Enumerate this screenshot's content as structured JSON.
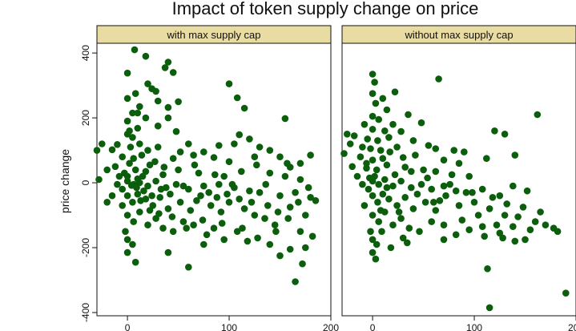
{
  "chart_data": {
    "type": "scatter",
    "title": "Impact of token supply change on price",
    "ylabel": "price change",
    "xlabel": "",
    "xlim": [
      -30,
      200
    ],
    "ylim": [
      -410,
      430
    ],
    "x_ticks": [
      0,
      100,
      200
    ],
    "y_ticks": [
      -400,
      -200,
      0,
      200,
      400
    ],
    "grid": false,
    "colors": {
      "marker": "#0b5e0b",
      "strip": "#e9dca3",
      "axis": "#111111"
    },
    "panels": [
      {
        "name": "with max supply cap",
        "points": [
          [
            7,
            410
          ],
          [
            18,
            390
          ],
          [
            40,
            372
          ],
          [
            37,
            355
          ],
          [
            45,
            340
          ],
          [
            0,
            338
          ],
          [
            20,
            305
          ],
          [
            24,
            290
          ],
          [
            100,
            305
          ],
          [
            8,
            275
          ],
          [
            28,
            282
          ],
          [
            0,
            260
          ],
          [
            30,
            252
          ],
          [
            108,
            262
          ],
          [
            115,
            230
          ],
          [
            50,
            250
          ],
          [
            40,
            232
          ],
          [
            12,
            235
          ],
          [
            5,
            215
          ],
          [
            18,
            200
          ],
          [
            0,
            190
          ],
          [
            40,
            200
          ],
          [
            155,
            198
          ],
          [
            30,
            175
          ],
          [
            10,
            168
          ],
          [
            2,
            160
          ],
          [
            48,
            158
          ],
          [
            110,
            148
          ],
          [
            120,
            135
          ],
          [
            -25,
            120
          ],
          [
            -10,
            118
          ],
          [
            -30,
            100
          ],
          [
            -15,
            102
          ],
          [
            0,
            150
          ],
          [
            5,
            140
          ],
          [
            12,
            120
          ],
          [
            20,
            100
          ],
          [
            30,
            110
          ],
          [
            60,
            120
          ],
          [
            75,
            95
          ],
          [
            90,
            115
          ],
          [
            105,
            120
          ],
          [
            130,
            110
          ],
          [
            140,
            100
          ],
          [
            150,
            80
          ],
          [
            180,
            85
          ],
          [
            170,
            60
          ],
          [
            160,
            48
          ],
          [
            45,
            75
          ],
          [
            65,
            85
          ],
          [
            85,
            78
          ],
          [
            100,
            65
          ],
          [
            125,
            80
          ],
          [
            -5,
            80
          ],
          [
            -12,
            50
          ],
          [
            -20,
            40
          ],
          [
            -3,
            30
          ],
          [
            2,
            60
          ],
          [
            8,
            40
          ],
          [
            15,
            20
          ],
          [
            22,
            55
          ],
          [
            35,
            25
          ],
          [
            50,
            40
          ],
          [
            70,
            30
          ],
          [
            95,
            20
          ],
          [
            112,
            35
          ],
          [
            140,
            30
          ],
          [
            155,
            20
          ],
          [
            170,
            10
          ],
          [
            -28,
            10
          ],
          [
            0,
            5
          ],
          [
            6,
            -5
          ],
          [
            12,
            0
          ],
          [
            20,
            -10
          ],
          [
            28,
            5
          ],
          [
            38,
            -15
          ],
          [
            48,
            -5
          ],
          [
            60,
            -20
          ],
          [
            75,
            -10
          ],
          [
            90,
            -5
          ],
          [
            105,
            -15
          ],
          [
            120,
            -25
          ],
          [
            130,
            -30
          ],
          [
            150,
            -40
          ],
          [
            165,
            -30
          ],
          [
            180,
            -45
          ],
          [
            185,
            -55
          ],
          [
            -10,
            -5
          ],
          [
            -5,
            -20
          ],
          [
            0,
            -40
          ],
          [
            5,
            -60
          ],
          [
            10,
            -35
          ],
          [
            18,
            -50
          ],
          [
            25,
            -70
          ],
          [
            32,
            -45
          ],
          [
            40,
            -80
          ],
          [
            52,
            -60
          ],
          [
            62,
            -85
          ],
          [
            72,
            -40
          ],
          [
            82,
            -70
          ],
          [
            92,
            -90
          ],
          [
            100,
            -60
          ],
          [
            115,
            -80
          ],
          [
            125,
            -100
          ],
          [
            135,
            -110
          ],
          [
            145,
            -130
          ],
          [
            158,
            -110
          ],
          [
            170,
            -150
          ],
          [
            175,
            -100
          ],
          [
            182,
            -165
          ],
          [
            -5,
            -70
          ],
          [
            0,
            -100
          ],
          [
            6,
            -120
          ],
          [
            12,
            -90
          ],
          [
            20,
            -130
          ],
          [
            28,
            -110
          ],
          [
            35,
            -140
          ],
          [
            45,
            -150
          ],
          [
            55,
            -120
          ],
          [
            65,
            -130
          ],
          [
            78,
            -160
          ],
          [
            85,
            -140
          ],
          [
            95,
            -175
          ],
          [
            108,
            -150
          ],
          [
            118,
            -180
          ],
          [
            128,
            -170
          ],
          [
            140,
            -190
          ],
          [
            160,
            -205
          ],
          [
            175,
            -200
          ],
          [
            -2,
            -150
          ],
          [
            0,
            -175
          ],
          [
            5,
            -190
          ],
          [
            0,
            -215
          ],
          [
            8,
            -245
          ],
          [
            60,
            -260
          ],
          [
            75,
            -190
          ],
          [
            40,
            -215
          ],
          [
            150,
            -225
          ],
          [
            172,
            -250
          ],
          [
            165,
            -305
          ],
          [
            10,
            215
          ],
          [
            3,
            110
          ],
          [
            6,
            75
          ],
          [
            14,
            85
          ],
          [
            -8,
            20
          ],
          [
            9,
            -15
          ],
          [
            16,
            -25
          ],
          [
            24,
            -40
          ],
          [
            33,
            -20
          ],
          [
            42,
            -35
          ],
          [
            55,
            -10
          ],
          [
            68,
            -55
          ],
          [
            80,
            -30
          ],
          [
            88,
            -45
          ],
          [
            98,
            -35
          ],
          [
            110,
            -50
          ],
          [
            122,
            -60
          ],
          [
            138,
            -70
          ],
          [
            148,
            -90
          ],
          [
            160,
            -75
          ],
          [
            -15,
            -40
          ],
          [
            -20,
            -60
          ],
          [
            0,
            20
          ],
          [
            4,
            -8
          ],
          [
            10,
            12
          ],
          [
            13,
            -55
          ],
          [
            18,
            35
          ],
          [
            22,
            -85
          ],
          [
            27,
            65
          ],
          [
            31,
            -95
          ],
          [
            36,
            48
          ],
          [
            44,
            -105
          ],
          [
            52,
            95
          ],
          [
            58,
            -140
          ],
          [
            66,
            55
          ],
          [
            74,
            -115
          ],
          [
            86,
            25
          ],
          [
            93,
            -125
          ],
          [
            103,
            -5
          ],
          [
            113,
            -140
          ],
          [
            127,
            55
          ],
          [
            136,
            -5
          ],
          [
            146,
            -150
          ],
          [
            157,
            60
          ],
          [
            168,
            -60
          ],
          [
            178,
            -15
          ]
        ]
      },
      {
        "name": "without max supply cap",
        "points": [
          [
            0,
            335
          ],
          [
            2,
            310
          ],
          [
            65,
            320
          ],
          [
            0,
            275
          ],
          [
            22,
            280
          ],
          [
            10,
            260
          ],
          [
            3,
            245
          ],
          [
            14,
            225
          ],
          [
            35,
            210
          ],
          [
            0,
            205
          ],
          [
            6,
            195
          ],
          [
            20,
            180
          ],
          [
            48,
            185
          ],
          [
            -8,
            180
          ],
          [
            0,
            165
          ],
          [
            12,
            160
          ],
          [
            28,
            158
          ],
          [
            -25,
            150
          ],
          [
            -18,
            145
          ],
          [
            -5,
            135
          ],
          [
            5,
            130
          ],
          [
            16,
            140
          ],
          [
            40,
            130
          ],
          [
            120,
            160
          ],
          [
            130,
            150
          ],
          [
            162,
            210
          ],
          [
            -22,
            120
          ],
          [
            -10,
            110
          ],
          [
            -2,
            105
          ],
          [
            8,
            100
          ],
          [
            24,
            110
          ],
          [
            55,
            115
          ],
          [
            62,
            105
          ],
          [
            80,
            100
          ],
          [
            90,
            95
          ],
          [
            -28,
            90
          ],
          [
            -12,
            80
          ],
          [
            0,
            70
          ],
          [
            10,
            75
          ],
          [
            30,
            78
          ],
          [
            42,
            85
          ],
          [
            70,
            70
          ],
          [
            85,
            60
          ],
          [
            112,
            75
          ],
          [
            140,
            85
          ],
          [
            -20,
            50
          ],
          [
            -6,
            45
          ],
          [
            4,
            40
          ],
          [
            14,
            55
          ],
          [
            32,
            48
          ],
          [
            50,
            40
          ],
          [
            62,
            35
          ],
          [
            78,
            25
          ],
          [
            95,
            20
          ],
          [
            -15,
            20
          ],
          [
            -3,
            15
          ],
          [
            0,
            5
          ],
          [
            6,
            -5
          ],
          [
            12,
            10
          ],
          [
            20,
            -10
          ],
          [
            28,
            5
          ],
          [
            38,
            -15
          ],
          [
            48,
            -5
          ],
          [
            58,
            -20
          ],
          [
            70,
            -10
          ],
          [
            82,
            -25
          ],
          [
            98,
            -30
          ],
          [
            108,
            -20
          ],
          [
            125,
            -40
          ],
          [
            138,
            -10
          ],
          [
            152,
            -25
          ],
          [
            -10,
            -5
          ],
          [
            -4,
            -20
          ],
          [
            0,
            -40
          ],
          [
            5,
            -60
          ],
          [
            10,
            -35
          ],
          [
            16,
            -50
          ],
          [
            24,
            -70
          ],
          [
            32,
            -45
          ],
          [
            40,
            -80
          ],
          [
            52,
            -60
          ],
          [
            62,
            -85
          ],
          [
            72,
            -40
          ],
          [
            85,
            -70
          ],
          [
            100,
            -60
          ],
          [
            115,
            -80
          ],
          [
            130,
            -100
          ],
          [
            148,
            -75
          ],
          [
            165,
            -90
          ],
          [
            -8,
            -70
          ],
          [
            0,
            -100
          ],
          [
            6,
            -120
          ],
          [
            12,
            -90
          ],
          [
            20,
            -130
          ],
          [
            28,
            -110
          ],
          [
            36,
            -140
          ],
          [
            46,
            -150
          ],
          [
            58,
            -120
          ],
          [
            70,
            -130
          ],
          [
            82,
            -160
          ],
          [
            95,
            -145
          ],
          [
            108,
            -135
          ],
          [
            122,
            -130
          ],
          [
            138,
            -135
          ],
          [
            155,
            -145
          ],
          [
            170,
            -130
          ],
          [
            178,
            -140
          ],
          [
            -2,
            -150
          ],
          [
            0,
            -175
          ],
          [
            4,
            -190
          ],
          [
            0,
            -215
          ],
          [
            3,
            -235
          ],
          [
            18,
            -200
          ],
          [
            34,
            -185
          ],
          [
            70,
            -175
          ],
          [
            110,
            -165
          ],
          [
            125,
            -155
          ],
          [
            150,
            -175
          ],
          [
            113,
            -265
          ],
          [
            128,
            -170
          ],
          [
            140,
            -180
          ],
          [
            182,
            -150
          ],
          [
            190,
            -340
          ],
          [
            115,
            -385
          ],
          [
            8,
            -85
          ],
          [
            14,
            -15
          ],
          [
            22,
            25
          ],
          [
            26,
            -90
          ],
          [
            44,
            -35
          ],
          [
            54,
            15
          ],
          [
            66,
            -55
          ],
          [
            76,
            -5
          ],
          [
            88,
            -115
          ],
          [
            104,
            -100
          ],
          [
            118,
            -45
          ],
          [
            132,
            -65
          ],
          [
            -6,
            60
          ],
          [
            2,
            20
          ],
          [
            9,
            -150
          ],
          [
            17,
            95
          ],
          [
            30,
            -170
          ],
          [
            38,
            35
          ],
          [
            60,
            -60
          ],
          [
            92,
            -30
          ],
          [
            143,
            -105
          ],
          [
            160,
            -120
          ]
        ]
      }
    ]
  }
}
